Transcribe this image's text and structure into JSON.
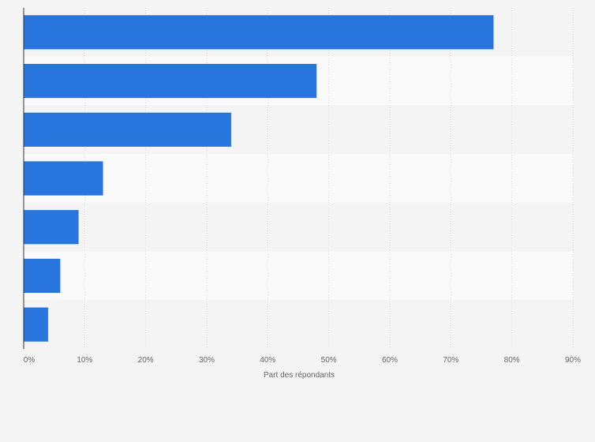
{
  "chart_data": {
    "type": "bar",
    "orientation": "horizontal",
    "categories": [
      "",
      "",
      "",
      "",
      "",
      "",
      ""
    ],
    "values": [
      77,
      48,
      34,
      13,
      9,
      6,
      4
    ],
    "value_unit": "%",
    "xlim": [
      0,
      90
    ],
    "x_ticks": [
      "0%",
      "10%",
      "20%",
      "30%",
      "40%",
      "50%",
      "60%",
      "70%",
      "80%",
      "90%"
    ],
    "xlabel": "Part des répondants",
    "ylabel": "",
    "title": "",
    "grid": true,
    "legend": "none",
    "bar_color": "#2876dd",
    "row_band_colors": [
      "#f4f4f4",
      "#fafafa"
    ],
    "gridline_color": "#dddddd",
    "background_color": "#f4f4f4"
  }
}
